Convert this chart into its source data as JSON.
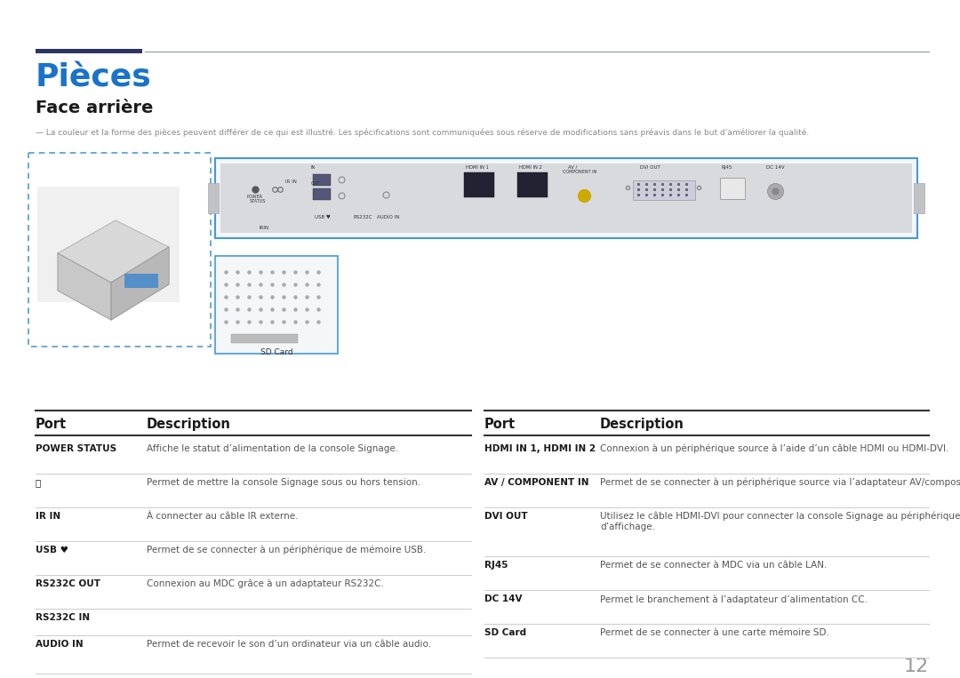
{
  "title": "Pièces",
  "subtitle": "Face arrière",
  "note": "— La couleur et la forme des pièces peuvent différer de ce qui est illustré. Les spécifications sont communiquées sous réserve de modifications sans préavis dans le but d’améliorer la qualité.",
  "title_color": "#1a73c8",
  "subtitle_color": "#1a1a1a",
  "note_color": "#888888",
  "header_bar_color": "#2d3561",
  "header_line_color": "#8899aa",
  "bg_color": "#ffffff",
  "table_header_color": "#1a1a1a",
  "table_port_bold_color": "#1a1a1a",
  "table_desc_color": "#555555",
  "separator_dark": "#333333",
  "separator_light": "#cccccc",
  "blue_border": "#4499dd",
  "dash_color": "#5599cc",
  "page_number": "12",
  "left_table": [
    {
      "port": "POWER STATUS",
      "desc": "Affiche le statut d’alimentation de la console Signage.",
      "extra_gap": false
    },
    {
      "port": "⏻",
      "desc": "Permet de mettre la console Signage sous ou hors tension.",
      "extra_gap": false
    },
    {
      "port": "IR IN",
      "desc": "À connecter au câble IR externe.",
      "extra_gap": false
    },
    {
      "port": "USB ♥",
      "desc": "Permet de se connecter à un périphérique de mémoire USB.",
      "extra_gap": false
    },
    {
      "port": "RS232C OUT",
      "desc": "Connexion au MDC grâce à un adaptateur RS232C.",
      "extra_gap": false
    },
    {
      "port": "RS232C IN",
      "desc": "",
      "extra_gap": false
    },
    {
      "port": "AUDIO IN",
      "desc": "Permet de recevoir le son d’un ordinateur via un câble audio.",
      "extra_gap": false
    }
  ],
  "right_table": [
    {
      "port": "HDMI IN 1, HDMI IN 2",
      "desc": "Connexion à un périphérique source à l’aide d’un câble HDMI ou HDMI-DVI.",
      "multiline": false
    },
    {
      "port": "AV / COMPONENT IN",
      "desc": "Permet de se connecter à un périphérique source via l’adaptateur AV/composant.",
      "multiline": false
    },
    {
      "port": "DVI OUT",
      "desc": "Utilisez le câble HDMI-DVI pour connecter la console Signage au périphérique\nd’affichage.",
      "multiline": true
    },
    {
      "port": "RJ45",
      "desc": "Permet de se connecter à MDC via un câble LAN.",
      "multiline": false
    },
    {
      "port": "DC 14V",
      "desc": "Permet le branchement à l’adaptateur d’alimentation CC.",
      "multiline": false
    },
    {
      "port": "SD Card",
      "desc": "Permet de se connecter à une carte mémoire SD.",
      "multiline": false
    }
  ]
}
